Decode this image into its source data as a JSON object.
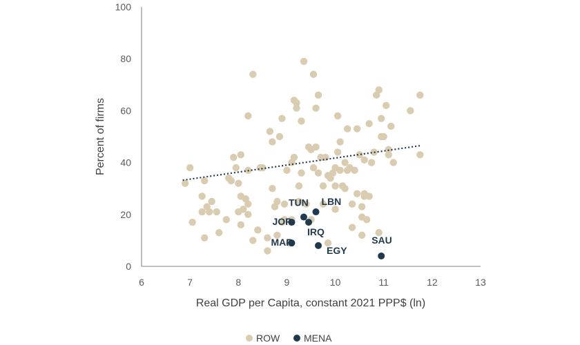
{
  "chart_data": {
    "type": "scatter",
    "xlabel": "Real GDP per Capita, constant 2021 PPP$ (ln)",
    "ylabel": "Percent of firms",
    "xlim": [
      6,
      13
    ],
    "ylim": [
      0,
      100
    ],
    "xticks": [
      "6",
      "7",
      "8",
      "9",
      "10",
      "11",
      "12",
      "13"
    ],
    "yticks": [
      "0",
      "20",
      "40",
      "60",
      "80",
      "100"
    ],
    "legend_position": "bottom",
    "grid": false,
    "colors": {
      "ROW": "#d9ccaf",
      "MENA": "#1f3a4f",
      "trend": "#1f3a4f"
    },
    "trendline": {
      "style": "dotted",
      "x": [
        6.85,
        11.75
      ],
      "y": [
        33.2,
        46.5
      ]
    },
    "series": [
      {
        "name": "ROW",
        "points": [
          [
            6.9,
            32
          ],
          [
            7.0,
            38
          ],
          [
            7.05,
            17
          ],
          [
            7.25,
            27
          ],
          [
            7.25,
            21
          ],
          [
            7.3,
            33
          ],
          [
            7.3,
            11
          ],
          [
            7.35,
            23
          ],
          [
            7.4,
            21
          ],
          [
            7.45,
            25
          ],
          [
            7.55,
            21
          ],
          [
            7.6,
            13
          ],
          [
            7.75,
            18
          ],
          [
            7.8,
            34
          ],
          [
            7.85,
            33
          ],
          [
            7.9,
            42
          ],
          [
            7.95,
            38
          ],
          [
            8.0,
            21
          ],
          [
            8.0,
            32
          ],
          [
            8.05,
            27
          ],
          [
            8.05,
            43
          ],
          [
            8.05,
            16
          ],
          [
            8.1,
            22
          ],
          [
            8.15,
            26
          ],
          [
            8.2,
            24
          ],
          [
            8.2,
            20
          ],
          [
            8.2,
            37
          ],
          [
            8.2,
            58
          ],
          [
            8.3,
            74
          ],
          [
            8.3,
            10
          ],
          [
            8.4,
            14
          ],
          [
            8.45,
            38
          ],
          [
            8.5,
            38
          ],
          [
            8.6,
            6
          ],
          [
            8.6,
            11
          ],
          [
            8.65,
            52
          ],
          [
            8.7,
            48
          ],
          [
            8.7,
            30
          ],
          [
            8.75,
            23
          ],
          [
            8.8,
            25
          ],
          [
            8.8,
            12
          ],
          [
            8.85,
            50
          ],
          [
            8.9,
            57
          ],
          [
            8.9,
            17
          ],
          [
            8.95,
            24
          ],
          [
            8.95,
            18
          ],
          [
            9.0,
            37
          ],
          [
            9.05,
            9
          ],
          [
            9.1,
            40
          ],
          [
            9.1,
            18
          ],
          [
            9.15,
            42
          ],
          [
            9.15,
            64
          ],
          [
            9.2,
            61
          ],
          [
            9.2,
            63
          ],
          [
            9.25,
            31
          ],
          [
            9.25,
            25
          ],
          [
            9.3,
            56
          ],
          [
            9.3,
            36
          ],
          [
            9.35,
            79
          ],
          [
            9.4,
            24
          ],
          [
            9.45,
            46
          ],
          [
            9.5,
            45
          ],
          [
            9.5,
            18
          ],
          [
            9.55,
            74
          ],
          [
            9.55,
            38
          ],
          [
            9.6,
            46
          ],
          [
            9.6,
            61
          ],
          [
            9.65,
            66
          ],
          [
            9.65,
            36
          ],
          [
            9.7,
            42
          ],
          [
            9.75,
            24
          ],
          [
            9.75,
            31
          ],
          [
            9.8,
            42
          ],
          [
            9.85,
            35
          ],
          [
            9.85,
            9
          ],
          [
            9.9,
            34
          ],
          [
            9.95,
            36
          ],
          [
            10.0,
            38
          ],
          [
            10.0,
            22
          ],
          [
            10.0,
            31
          ],
          [
            10.05,
            58
          ],
          [
            10.05,
            44
          ],
          [
            10.1,
            48
          ],
          [
            10.1,
            37
          ],
          [
            10.15,
            31
          ],
          [
            10.2,
            30
          ],
          [
            10.2,
            40
          ],
          [
            10.25,
            37
          ],
          [
            10.25,
            53
          ],
          [
            10.3,
            38
          ],
          [
            10.35,
            24
          ],
          [
            10.35,
            15
          ],
          [
            10.4,
            37
          ],
          [
            10.45,
            53
          ],
          [
            10.45,
            28
          ],
          [
            10.5,
            43
          ],
          [
            10.55,
            23
          ],
          [
            10.55,
            19
          ],
          [
            10.55,
            12
          ],
          [
            10.6,
            41
          ],
          [
            10.6,
            27
          ],
          [
            10.6,
            28
          ],
          [
            10.65,
            18
          ],
          [
            10.7,
            27
          ],
          [
            10.7,
            55
          ],
          [
            10.75,
            40
          ],
          [
            10.8,
            44
          ],
          [
            10.85,
            66
          ],
          [
            10.9,
            68
          ],
          [
            10.9,
            13
          ],
          [
            10.95,
            57
          ],
          [
            10.95,
            50
          ],
          [
            11.0,
            50
          ],
          [
            11.05,
            62
          ],
          [
            11.1,
            45
          ],
          [
            11.1,
            43
          ],
          [
            11.15,
            54
          ],
          [
            11.2,
            40
          ],
          [
            11.55,
            60
          ],
          [
            11.75,
            66
          ],
          [
            11.75,
            43
          ]
        ]
      },
      {
        "name": "MENA",
        "points": [
          [
            9.1,
            17
          ],
          [
            9.35,
            19
          ],
          [
            9.45,
            17
          ],
          [
            9.6,
            21
          ],
          [
            9.1,
            9
          ],
          [
            9.65,
            8
          ],
          [
            10.95,
            4
          ]
        ]
      }
    ],
    "annotations": [
      {
        "label": "TUN",
        "x": 9.35,
        "y": 19
      },
      {
        "label": "LBN",
        "x": 9.6,
        "y": 21
      },
      {
        "label": "JOR",
        "x": 9.1,
        "y": 17
      },
      {
        "label": "IRQ",
        "x": 9.45,
        "y": 17
      },
      {
        "label": "MAR",
        "x": 9.1,
        "y": 9
      },
      {
        "label": "EGY",
        "x": 9.65,
        "y": 8
      },
      {
        "label": "SAU",
        "x": 10.95,
        "y": 4
      }
    ],
    "legend": [
      "ROW",
      "MENA"
    ]
  }
}
